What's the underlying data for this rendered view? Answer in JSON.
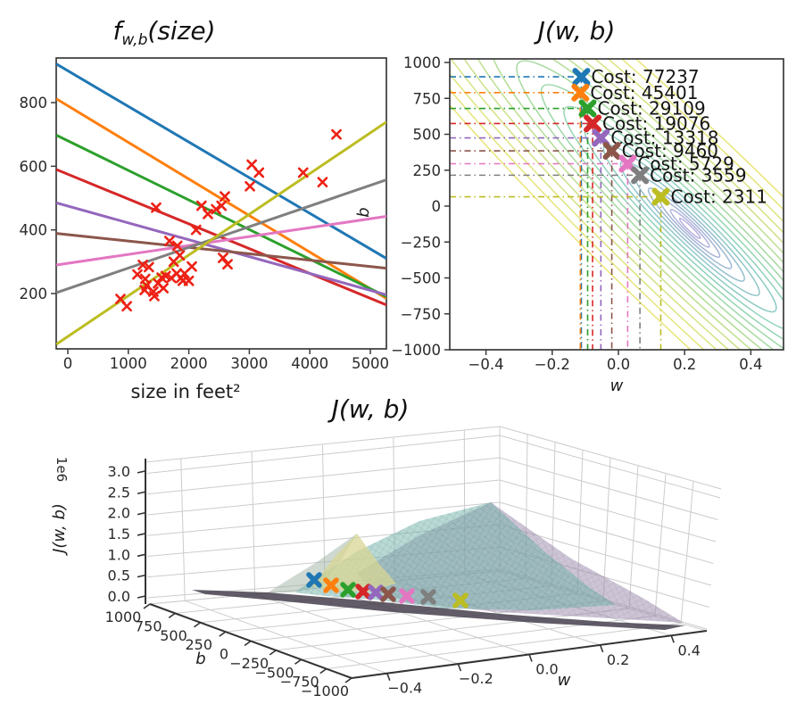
{
  "colors": {
    "axis": "#3a3a3a",
    "grid3d": "#cccccc",
    "scatter_marker": "#ed2115",
    "cycle": [
      "#1f77b4",
      "#ff7f0e",
      "#2ca02c",
      "#d62728",
      "#9467bd",
      "#8c564b",
      "#e377c2",
      "#7f7f7f",
      "#bcbd22"
    ]
  },
  "models": [
    {
      "color": "#1f77b4",
      "w": -0.112,
      "b": 900,
      "cost": 77237,
      "cost_label": "Cost: 77237"
    },
    {
      "color": "#ff7f0e",
      "w": -0.115,
      "b": 790,
      "cost": 45401,
      "cost_label": "Cost: 45401"
    },
    {
      "color": "#2ca02c",
      "w": -0.093,
      "b": 680,
      "cost": 29109,
      "cost_label": "Cost: 29109"
    },
    {
      "color": "#d62728",
      "w": -0.078,
      "b": 575,
      "cost": 19076,
      "cost_label": "Cost: 19076"
    },
    {
      "color": "#9467bd",
      "w": -0.053,
      "b": 475,
      "cost": 13318,
      "cost_label": "Cost: 13318"
    },
    {
      "color": "#8c564b",
      "w": -0.02,
      "b": 385,
      "cost": 9460,
      "cost_label": "Cost: 9460"
    },
    {
      "color": "#e377c2",
      "w": 0.028,
      "b": 295,
      "cost": 5729,
      "cost_label": "Cost: 5729"
    },
    {
      "color": "#7f7f7f",
      "w": 0.065,
      "b": 215,
      "cost": 3559,
      "cost_label": "Cost: 3559"
    },
    {
      "color": "#bcbd22",
      "w": 0.128,
      "b": 65,
      "cost": 2311,
      "cost_label": "Cost: 2311"
    }
  ],
  "chart_data": [
    {
      "type": "scatter",
      "title": "f_{w,b}(size)",
      "title_f": "f",
      "title_sub": "w,b",
      "title_rest": "(size)",
      "xlabel": "size in feet²",
      "xticks": [
        "0",
        "1000",
        "2000",
        "3000",
        "4000",
        "5000"
      ],
      "xtick_vals": [
        0,
        1000,
        2000,
        3000,
        4000,
        5000
      ],
      "yticks": [
        "200",
        "400",
        "600",
        "800"
      ],
      "ytick_vals": [
        200,
        400,
        600,
        800
      ],
      "xlim": [
        -190,
        5265
      ],
      "ylim": [
        25,
        940
      ],
      "marker": "x",
      "marker_color": "#ed2115",
      "points": [
        [
          870,
          183
        ],
        [
          975,
          160
        ],
        [
          1150,
          260
        ],
        [
          1240,
          290
        ],
        [
          1270,
          211
        ],
        [
          1280,
          246
        ],
        [
          1300,
          225
        ],
        [
          1340,
          283
        ],
        [
          1415,
          206
        ],
        [
          1430,
          192
        ],
        [
          1460,
          470
        ],
        [
          1490,
          232
        ],
        [
          1550,
          250
        ],
        [
          1580,
          217
        ],
        [
          1620,
          255
        ],
        [
          1680,
          365
        ],
        [
          1710,
          249
        ],
        [
          1750,
          300
        ],
        [
          1800,
          263
        ],
        [
          1810,
          350
        ],
        [
          1850,
          320
        ],
        [
          1870,
          249
        ],
        [
          1900,
          240
        ],
        [
          1930,
          263
        ],
        [
          2000,
          240
        ],
        [
          2050,
          285
        ],
        [
          2120,
          400
        ],
        [
          2210,
          476
        ],
        [
          2315,
          450
        ],
        [
          2450,
          465
        ],
        [
          2540,
          476
        ],
        [
          2565,
          312
        ],
        [
          2595,
          505
        ],
        [
          2640,
          292
        ],
        [
          3010,
          537
        ],
        [
          3040,
          605
        ],
        [
          3160,
          580
        ],
        [
          3890,
          580
        ],
        [
          4210,
          550
        ],
        [
          4440,
          700
        ]
      ]
    },
    {
      "type": "contour",
      "title": "J(w, b)",
      "xlabel": "w",
      "ylabel": "b",
      "xticks": [
        "−0.4",
        "−0.2",
        "0.0",
        "0.2",
        "0.4"
      ],
      "xtick_vals": [
        -0.4,
        -0.2,
        0.0,
        0.2,
        0.4
      ],
      "yticks": [
        "1000",
        "750",
        "500",
        "250",
        "0",
        "−250",
        "−500",
        "−750",
        "−1000"
      ],
      "ytick_vals": [
        1000,
        750,
        500,
        250,
        0,
        -250,
        -500,
        -750,
        -1000
      ],
      "xlim": [
        -0.51,
        0.5
      ],
      "ylim": [
        -1025,
        1025
      ],
      "center": [
        0.216,
        -155
      ],
      "ring_colors": [
        "#aba1d8",
        "#a1a3d4",
        "#97a7cf",
        "#8dadca",
        "#84b4c5",
        "#7dbcc0",
        "#7ac3ba",
        "#7cc9b0",
        "#82cea4",
        "#8bd199",
        "#97d48e",
        "#a5d784",
        "#b3d97c",
        "#c1db74",
        "#cedd6e",
        "#d8df68",
        "#dfe063",
        "#e4e160"
      ],
      "annotation_prefix": "Cost: "
    },
    {
      "type": "surface",
      "title": "J(w, b)",
      "zlabel": "J(w, b)",
      "offset_text": "1e6",
      "zticks": [
        "3.0",
        "2.5",
        "2.0",
        "1.5",
        "1.0",
        "0.5",
        "0.0"
      ],
      "ztick_vals": [
        3.0,
        2.5,
        2.0,
        1.5,
        1.0,
        0.5,
        0.0
      ],
      "bticks": [
        "1000",
        "750",
        "500",
        "250",
        "0",
        "−250",
        "−500",
        "−750",
        "−1000"
      ],
      "wticks": [
        "−0.4",
        "−0.2",
        "0.0",
        "0.2",
        "0.4"
      ],
      "surface_colors": {
        "peak_teal": "#74b4ac",
        "peak_yellow": "#d8d593",
        "slope_mauve": "#9c8bad",
        "back_flank": "#9fb4a6",
        "valley": "#45404c"
      }
    }
  ]
}
